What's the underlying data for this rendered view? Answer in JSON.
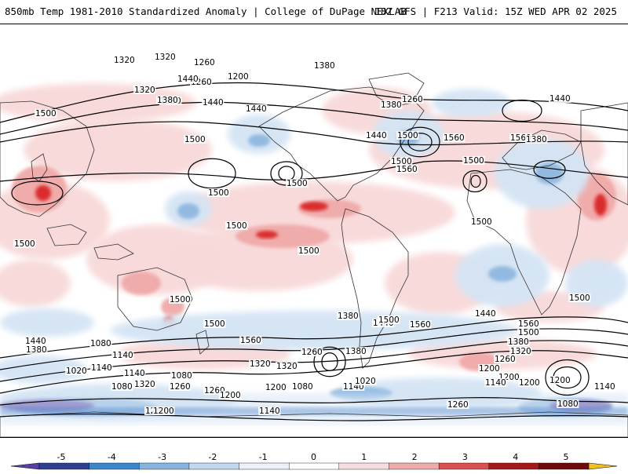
{
  "header": {
    "left_title": "850mb Temp 1981-2010 Standardized Anomaly | College of DuPage NEXLAB",
    "right_title": "18Z GFS | F213 Valid: 15Z WED APR 02 2025"
  },
  "map": {
    "contour_labels": [
      "1320",
      "1260",
      "1200",
      "1260",
      "1380",
      "1320",
      "1440",
      "1500",
      "1380",
      "1440",
      "1320",
      "1440",
      "1380",
      "1260",
      "1380",
      "1440",
      "1500",
      "1560",
      "1500",
      "1560",
      "1500",
      "1560",
      "1380",
      "1440",
      "1500",
      "1500",
      "1500",
      "1500",
      "1500",
      "1500",
      "1500",
      "1500",
      "1500",
      "1500",
      "1380",
      "1440",
      "1560",
      "1500",
      "1440",
      "1560",
      "1500",
      "1380",
      "1320",
      "1200",
      "1440",
      "1380",
      "1320",
      "1260",
      "1320",
      "1380",
      "1560",
      "1260",
      "1200",
      "1140",
      "1080",
      "1020",
      "1080",
      "1140",
      "1260",
      "1200",
      "1140",
      "1080",
      "1260",
      "1320",
      "1200",
      "1080",
      "1140",
      "1020",
      "1140",
      "1080",
      "1200",
      "1260",
      "1200",
      "1140",
      "1260",
      "1200",
      "1140"
    ],
    "colors": {
      "land_outline": "#333333",
      "contour_line": "#000000",
      "warm_light": "#f8d9d9",
      "warm_mid": "#f0a9a9",
      "warm_strong": "#d92626",
      "cold_light": "#d4e4f4",
      "cold_mid": "#8fb8e0",
      "cold_strong": "#3a78c8",
      "cold_extreme": "#5a3ca0"
    }
  },
  "colorbar": {
    "ticks": [
      "-5",
      "-4",
      "-3",
      "-2",
      "-1",
      "0",
      "1",
      "2",
      "3",
      "4",
      "5"
    ],
    "colors": [
      "#5b3fa8",
      "#2e3f8f",
      "#3b86c9",
      "#86b4df",
      "#c2d8ee",
      "#eaf1f9",
      "#ffffff",
      "#f7dede",
      "#efaaaa",
      "#d95050",
      "#a41a1a",
      "#6e0b0b",
      "#f0c020"
    ]
  }
}
